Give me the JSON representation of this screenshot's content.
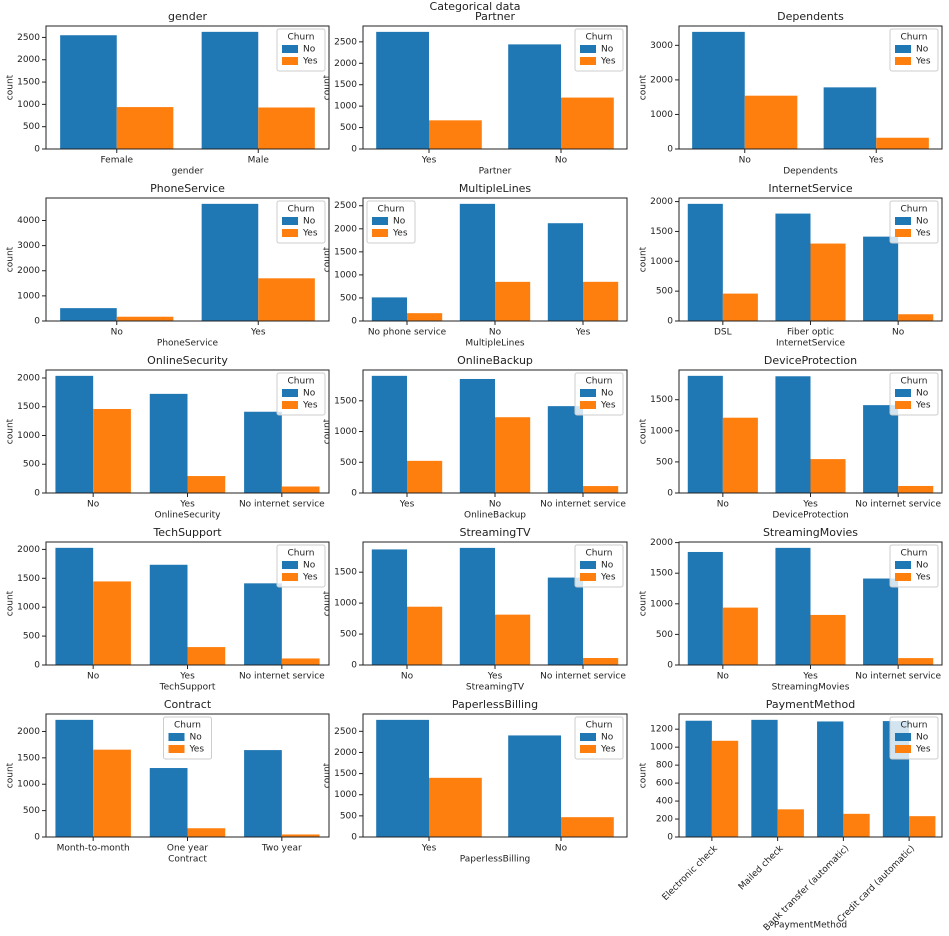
{
  "title": "Categorical data",
  "chart_data": [
    {
      "type": "bar",
      "title": "gender",
      "xlabel": "gender",
      "ylabel": "count",
      "categories": [
        "Female",
        "Male"
      ],
      "series": [
        {
          "name": "No",
          "color": "#1f77b4",
          "values": [
            2549,
            2625
          ]
        },
        {
          "name": "Yes",
          "color": "#ff7f0e",
          "values": [
            939,
            930
          ]
        }
      ],
      "ylim": [
        0,
        2756
      ],
      "yticks": [
        0,
        500,
        1000,
        1500,
        2000,
        2500
      ],
      "legend_title": "Churn",
      "legend_loc": "upper right"
    },
    {
      "type": "bar",
      "title": "Partner",
      "xlabel": "Partner",
      "ylabel": "count",
      "categories": [
        "Yes",
        "No"
      ],
      "series": [
        {
          "name": "No",
          "color": "#1f77b4",
          "values": [
            2733,
            2441
          ]
        },
        {
          "name": "Yes",
          "color": "#ff7f0e",
          "values": [
            669,
            1200
          ]
        }
      ],
      "ylim": [
        0,
        2870
      ],
      "yticks": [
        0,
        500,
        1000,
        1500,
        2000,
        2500
      ],
      "legend_title": "Churn",
      "legend_loc": "upper right"
    },
    {
      "type": "bar",
      "title": "Dependents",
      "xlabel": "Dependents",
      "ylabel": "count",
      "categories": [
        "No",
        "Yes"
      ],
      "series": [
        {
          "name": "No",
          "color": "#1f77b4",
          "values": [
            3390,
            1784
          ]
        },
        {
          "name": "Yes",
          "color": "#ff7f0e",
          "values": [
            1543,
            326
          ]
        }
      ],
      "ylim": [
        0,
        3560
      ],
      "yticks": [
        0,
        1000,
        2000,
        3000
      ],
      "legend_title": "Churn",
      "legend_loc": "upper right"
    },
    {
      "type": "bar",
      "title": "PhoneService",
      "xlabel": "PhoneService",
      "ylabel": "count",
      "categories": [
        "No",
        "Yes"
      ],
      "series": [
        {
          "name": "No",
          "color": "#1f77b4",
          "values": [
            512,
            4662
          ]
        },
        {
          "name": "Yes",
          "color": "#ff7f0e",
          "values": [
            170,
            1699
          ]
        }
      ],
      "ylim": [
        0,
        4895
      ],
      "yticks": [
        0,
        1000,
        2000,
        3000,
        4000
      ],
      "legend_title": "Churn",
      "legend_loc": "upper right"
    },
    {
      "type": "bar",
      "title": "MultipleLines",
      "xlabel": "MultipleLines",
      "ylabel": "count",
      "categories": [
        "No phone service",
        "No",
        "Yes"
      ],
      "series": [
        {
          "name": "No",
          "color": "#1f77b4",
          "values": [
            512,
            2541,
            2121
          ]
        },
        {
          "name": "Yes",
          "color": "#ff7f0e",
          "values": [
            170,
            849,
            850
          ]
        }
      ],
      "ylim": [
        0,
        2668
      ],
      "yticks": [
        0,
        500,
        1000,
        1500,
        2000,
        2500
      ],
      "legend_title": "Churn",
      "legend_loc": "upper left"
    },
    {
      "type": "bar",
      "title": "InternetService",
      "xlabel": "InternetService",
      "ylabel": "count",
      "categories": [
        "DSL",
        "Fiber optic",
        "No"
      ],
      "series": [
        {
          "name": "No",
          "color": "#1f77b4",
          "values": [
            1962,
            1799,
            1413
          ]
        },
        {
          "name": "Yes",
          "color": "#ff7f0e",
          "values": [
            459,
            1297,
            113
          ]
        }
      ],
      "ylim": [
        0,
        2060
      ],
      "yticks": [
        0,
        500,
        1000,
        1500,
        2000
      ],
      "legend_title": "Churn",
      "legend_loc": "upper right"
    },
    {
      "type": "bar",
      "title": "OnlineSecurity",
      "xlabel": "OnlineSecurity",
      "ylabel": "count",
      "categories": [
        "No",
        "Yes",
        "No internet service"
      ],
      "series": [
        {
          "name": "No",
          "color": "#1f77b4",
          "values": [
            2037,
            1724,
            1413
          ]
        },
        {
          "name": "Yes",
          "color": "#ff7f0e",
          "values": [
            1461,
            295,
            113
          ]
        }
      ],
      "ylim": [
        0,
        2139
      ],
      "yticks": [
        0,
        500,
        1000,
        1500,
        2000
      ],
      "legend_title": "Churn",
      "legend_loc": "upper right"
    },
    {
      "type": "bar",
      "title": "OnlineBackup",
      "xlabel": "OnlineBackup",
      "ylabel": "count",
      "categories": [
        "Yes",
        "No",
        "No internet service"
      ],
      "series": [
        {
          "name": "No",
          "color": "#1f77b4",
          "values": [
            1906,
            1855,
            1413
          ]
        },
        {
          "name": "Yes",
          "color": "#ff7f0e",
          "values": [
            523,
            1233,
            113
          ]
        }
      ],
      "ylim": [
        0,
        2001
      ],
      "yticks": [
        0,
        500,
        1000,
        1500
      ],
      "legend_title": "Churn",
      "legend_loc": "upper right"
    },
    {
      "type": "bar",
      "title": "DeviceProtection",
      "xlabel": "DeviceProtection",
      "ylabel": "count",
      "categories": [
        "No",
        "Yes",
        "No internet service"
      ],
      "series": [
        {
          "name": "No",
          "color": "#1f77b4",
          "values": [
            1884,
            1877,
            1413
          ]
        },
        {
          "name": "Yes",
          "color": "#ff7f0e",
          "values": [
            1211,
            545,
            113
          ]
        }
      ],
      "ylim": [
        0,
        1978
      ],
      "yticks": [
        0,
        500,
        1000,
        1500
      ],
      "legend_title": "Churn",
      "legend_loc": "upper right"
    },
    {
      "type": "bar",
      "title": "TechSupport",
      "xlabel": "TechSupport",
      "ylabel": "count",
      "categories": [
        "No",
        "Yes",
        "No internet service"
      ],
      "series": [
        {
          "name": "No",
          "color": "#1f77b4",
          "values": [
            2027,
            1734,
            1413
          ]
        },
        {
          "name": "Yes",
          "color": "#ff7f0e",
          "values": [
            1446,
            310,
            113
          ]
        }
      ],
      "ylim": [
        0,
        2128
      ],
      "yticks": [
        0,
        500,
        1000,
        1500,
        2000
      ],
      "legend_title": "Churn",
      "legend_loc": "upper right"
    },
    {
      "type": "bar",
      "title": "StreamingTV",
      "xlabel": "StreamingTV",
      "ylabel": "count",
      "categories": [
        "No",
        "Yes",
        "No internet service"
      ],
      "series": [
        {
          "name": "No",
          "color": "#1f77b4",
          "values": [
            1868,
            1893,
            1413
          ]
        },
        {
          "name": "Yes",
          "color": "#ff7f0e",
          "values": [
            942,
            814,
            113
          ]
        }
      ],
      "ylim": [
        0,
        1988
      ],
      "yticks": [
        0,
        500,
        1000,
        1500
      ],
      "legend_title": "Churn",
      "legend_loc": "upper right"
    },
    {
      "type": "bar",
      "title": "StreamingMovies",
      "xlabel": "StreamingMovies",
      "ylabel": "count",
      "categories": [
        "No",
        "Yes",
        "No internet service"
      ],
      "series": [
        {
          "name": "No",
          "color": "#1f77b4",
          "values": [
            1847,
            1914,
            1413
          ]
        },
        {
          "name": "Yes",
          "color": "#ff7f0e",
          "values": [
            938,
            818,
            113
          ]
        }
      ],
      "ylim": [
        0,
        2010
      ],
      "yticks": [
        0,
        500,
        1000,
        1500,
        2000
      ],
      "legend_title": "Churn",
      "legend_loc": "upper right"
    },
    {
      "type": "bar",
      "title": "Contract",
      "xlabel": "Contract",
      "ylabel": "count",
      "categories": [
        "Month-to-month",
        "One year",
        "Two year"
      ],
      "series": [
        {
          "name": "No",
          "color": "#1f77b4",
          "values": [
            2220,
            1307,
            1647
          ]
        },
        {
          "name": "Yes",
          "color": "#ff7f0e",
          "values": [
            1655,
            166,
            48
          ]
        }
      ],
      "ylim": [
        0,
        2331
      ],
      "yticks": [
        0,
        500,
        1000,
        1500,
        2000
      ],
      "legend_title": "Churn",
      "legend_loc": "upper center"
    },
    {
      "type": "bar",
      "title": "PaperlessBilling",
      "xlabel": "PaperlessBilling",
      "ylabel": "count",
      "categories": [
        "Yes",
        "No"
      ],
      "series": [
        {
          "name": "No",
          "color": "#1f77b4",
          "values": [
            2771,
            2403
          ]
        },
        {
          "name": "Yes",
          "color": "#ff7f0e",
          "values": [
            1400,
            469
          ]
        }
      ],
      "ylim": [
        0,
        2910
      ],
      "yticks": [
        0,
        500,
        1000,
        1500,
        2000,
        2500
      ],
      "legend_title": "Churn",
      "legend_loc": "upper right"
    },
    {
      "type": "bar",
      "title": "PaymentMethod",
      "xlabel": "PaymentMethod",
      "ylabel": "count",
      "categories": [
        "Electronic check",
        "Mailed check",
        "Bank transfer (automatic)",
        "Credit card (automatic)"
      ],
      "series": [
        {
          "name": "No",
          "color": "#1f77b4",
          "values": [
            1294,
            1304,
            1286,
            1290
          ]
        },
        {
          "name": "Yes",
          "color": "#ff7f0e",
          "values": [
            1071,
            308,
            258,
            232
          ]
        }
      ],
      "ylim": [
        0,
        1369
      ],
      "yticks": [
        0,
        200,
        400,
        600,
        800,
        1000,
        1200
      ],
      "legend_title": "Churn",
      "legend_loc": "upper right",
      "xtick_rotation": 45
    }
  ]
}
